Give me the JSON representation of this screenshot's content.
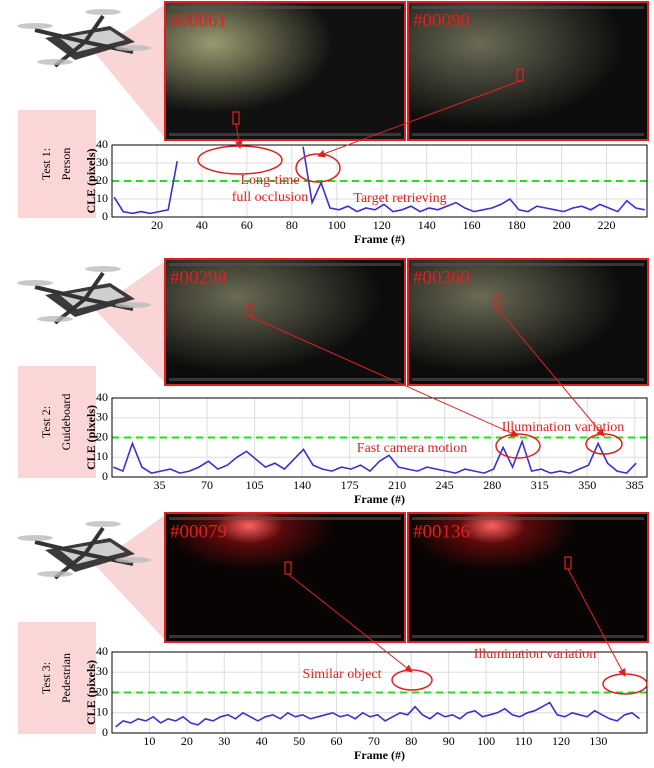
{
  "chart_data": [
    {
      "type": "line",
      "test_label": [
        "Test 1:",
        "Person"
      ],
      "frames": [
        "#00061",
        "#00090"
      ],
      "xlabel": "Frame (#)",
      "ylabel": "CLE (pixels)",
      "x": [
        1,
        5,
        9,
        13,
        17,
        21,
        25,
        29,
        33,
        37,
        41,
        45,
        49,
        53,
        57,
        61,
        65,
        69,
        73,
        77,
        81,
        85,
        89,
        93,
        97,
        101,
        105,
        109,
        113,
        117,
        121,
        125,
        129,
        133,
        137,
        141,
        145,
        149,
        153,
        157,
        161,
        165,
        169,
        173,
        177,
        181,
        185,
        189,
        193,
        197,
        201,
        205,
        209,
        213,
        217,
        221,
        225,
        229,
        233,
        237
      ],
      "values": [
        11,
        3,
        2,
        3,
        2,
        3,
        4,
        31,
        null,
        null,
        null,
        null,
        null,
        null,
        null,
        null,
        null,
        null,
        null,
        null,
        null,
        39,
        8,
        19,
        5,
        4,
        6,
        3,
        5,
        4,
        7,
        3,
        4,
        6,
        3,
        5,
        4,
        6,
        8,
        5,
        3,
        4,
        5,
        7,
        10,
        4,
        3,
        6,
        5,
        4,
        3,
        5,
        6,
        4,
        7,
        5,
        3,
        9,
        5,
        4
      ],
      "color": "#3a32d0",
      "threshold": 20,
      "threshold_color": "#22dd22",
      "xlim": [
        0,
        238
      ],
      "xticks": [
        20,
        40,
        60,
        80,
        100,
        120,
        140,
        160,
        180,
        200,
        220
      ],
      "ylim": [
        0,
        40
      ],
      "yticks": [
        0,
        10,
        20,
        30,
        40
      ],
      "grid": true,
      "annotations": [
        [
          "Long-time",
          "full occlusion"
        ],
        [
          "Target retrieving"
        ]
      ]
    },
    {
      "type": "line",
      "test_label": [
        "Test 2:",
        "Guideboard"
      ],
      "frames": [
        "#00298",
        "#00360"
      ],
      "xlabel": "Frame (#)",
      "ylabel": "CLE (pixels)",
      "x": [
        1,
        8,
        15,
        22,
        29,
        36,
        43,
        50,
        57,
        64,
        71,
        78,
        85,
        92,
        99,
        106,
        113,
        120,
        127,
        134,
        141,
        148,
        155,
        162,
        169,
        176,
        183,
        190,
        197,
        204,
        211,
        218,
        225,
        232,
        239,
        246,
        253,
        260,
        267,
        274,
        281,
        288,
        295,
        302,
        309,
        316,
        323,
        330,
        337,
        344,
        351,
        358,
        365,
        372,
        379,
        386
      ],
      "values": [
        5,
        3,
        17,
        5,
        2,
        3,
        4,
        2,
        3,
        5,
        8,
        4,
        6,
        10,
        13,
        9,
        5,
        7,
        4,
        9,
        14,
        6,
        4,
        3,
        5,
        4,
        6,
        3,
        8,
        11,
        5,
        4,
        3,
        5,
        4,
        3,
        2,
        4,
        3,
        2,
        4,
        15,
        5,
        18,
        3,
        4,
        2,
        3,
        2,
        4,
        6,
        17,
        7,
        3,
        2,
        7
      ],
      "color": "#3a32d0",
      "threshold": 20,
      "threshold_color": "#22dd22",
      "xlim": [
        0,
        394
      ],
      "xticks": [
        35,
        70,
        105,
        140,
        175,
        210,
        245,
        280,
        315,
        350,
        385
      ],
      "ylim": [
        0,
        40
      ],
      "yticks": [
        0,
        10,
        20,
        30,
        40
      ],
      "grid": true,
      "annotations": [
        [
          "Fast camera motion"
        ],
        [
          "Illumination variation"
        ]
      ]
    },
    {
      "type": "line",
      "test_label": [
        "Test 3:",
        "Pedestrian"
      ],
      "frames": [
        "#00079",
        "#00136"
      ],
      "xlabel": "Frame (#)",
      "ylabel": "CLE (pixels)",
      "x": [
        1,
        3,
        5,
        7,
        9,
        11,
        13,
        15,
        17,
        19,
        21,
        23,
        25,
        27,
        29,
        31,
        33,
        35,
        37,
        39,
        41,
        43,
        45,
        47,
        49,
        51,
        53,
        55,
        57,
        59,
        61,
        63,
        65,
        67,
        69,
        71,
        73,
        75,
        77,
        79,
        81,
        83,
        85,
        87,
        89,
        91,
        93,
        95,
        97,
        99,
        101,
        103,
        105,
        107,
        109,
        111,
        113,
        115,
        117,
        119,
        121,
        123,
        125,
        127,
        129,
        131,
        133,
        135,
        137,
        139,
        141
      ],
      "values": [
        3,
        6,
        5,
        7,
        6,
        8,
        5,
        7,
        6,
        8,
        5,
        4,
        7,
        6,
        8,
        9,
        7,
        10,
        8,
        6,
        8,
        9,
        7,
        10,
        8,
        9,
        7,
        8,
        9,
        10,
        8,
        9,
        7,
        10,
        8,
        9,
        6,
        8,
        10,
        9,
        13,
        9,
        7,
        10,
        8,
        9,
        7,
        10,
        11,
        8,
        9,
        10,
        12,
        9,
        8,
        10,
        11,
        13,
        15,
        9,
        8,
        10,
        9,
        8,
        11,
        9,
        7,
        6,
        9,
        10,
        7
      ],
      "color": "#3a32d0",
      "threshold": 20,
      "threshold_color": "#22dd22",
      "xlim": [
        0,
        143
      ],
      "xticks": [
        10,
        20,
        30,
        40,
        50,
        60,
        70,
        80,
        90,
        100,
        110,
        120,
        130
      ],
      "ylim": [
        0,
        40
      ],
      "yticks": [
        0,
        10,
        20,
        30,
        40
      ],
      "grid": true,
      "annotations": [
        [
          "Similar object"
        ],
        [
          "Illumination variation"
        ]
      ]
    }
  ]
}
